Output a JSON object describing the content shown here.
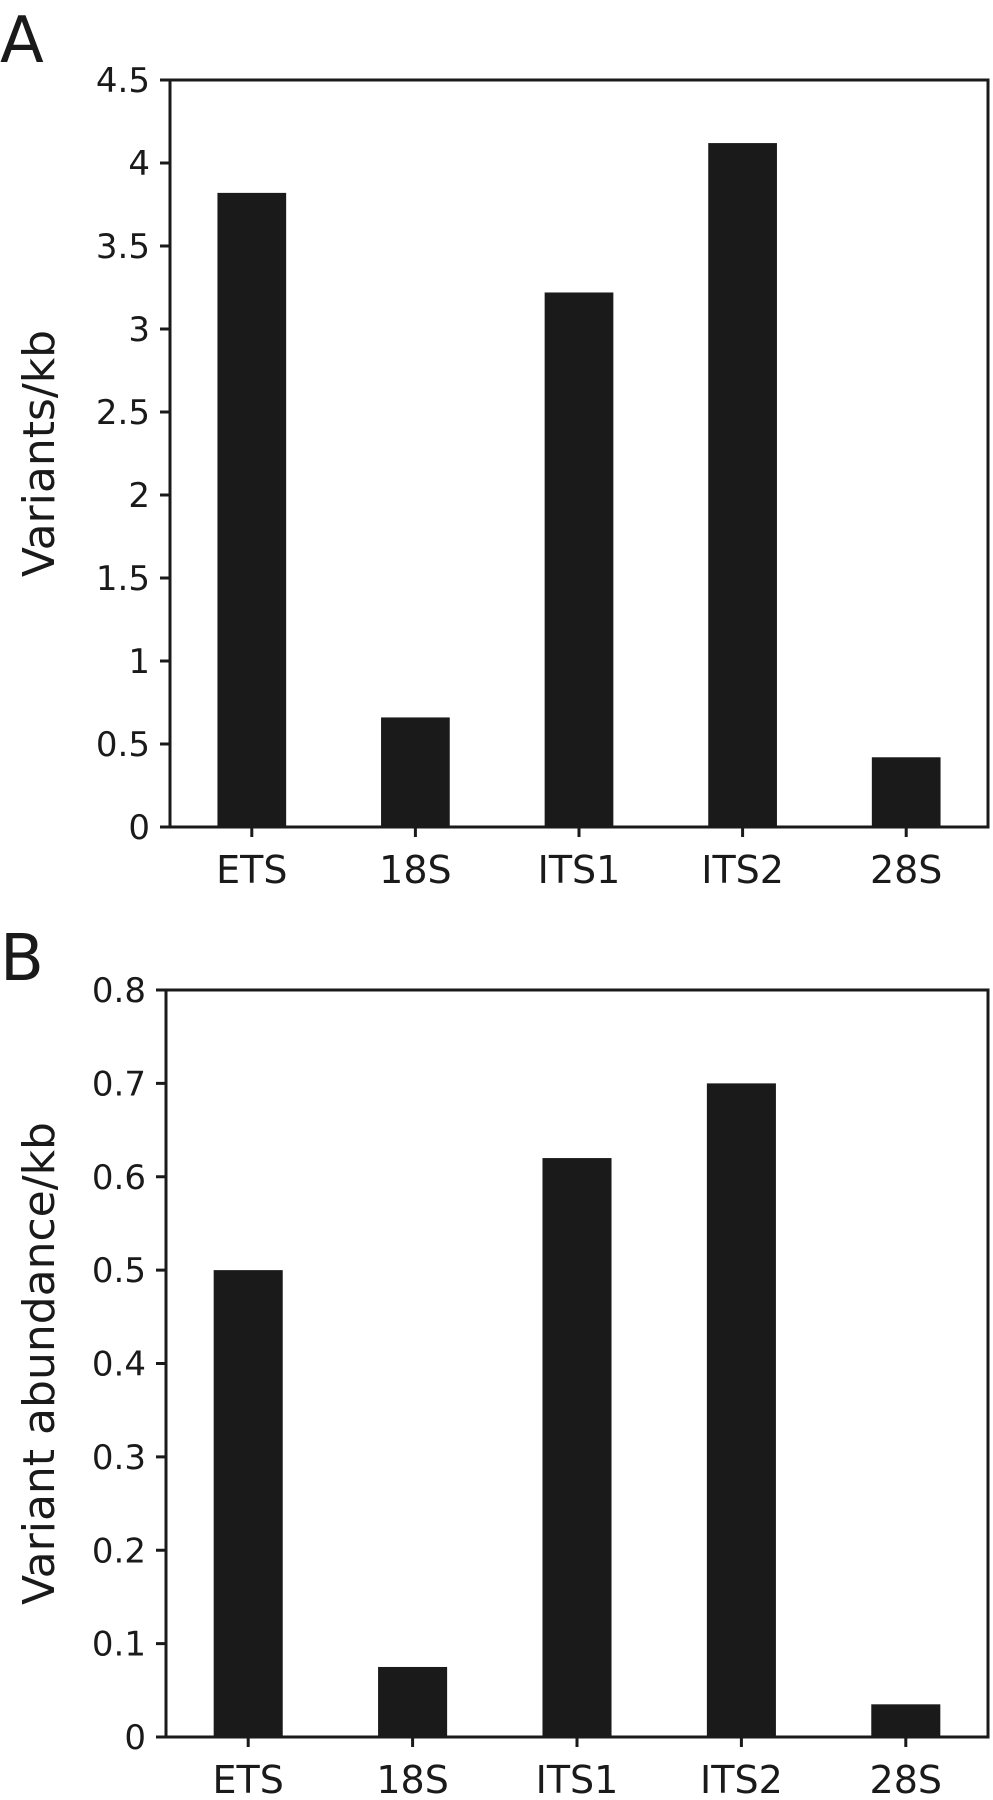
{
  "panels": [
    {
      "label": "A"
    },
    {
      "label": "B"
    }
  ],
  "colors": {
    "bar": "#1a1a1a",
    "axis": "#1a1a1a",
    "background": "#ffffff"
  },
  "chart_data": [
    {
      "type": "bar",
      "categories": [
        "ETS",
        "18S",
        "ITS1",
        "ITS2",
        "28S"
      ],
      "values": [
        3.82,
        0.66,
        3.22,
        4.12,
        0.42
      ],
      "title": "",
      "xlabel": "",
      "ylabel": "Variants/kb",
      "ylim": [
        0,
        4.5
      ],
      "yticks": [
        0,
        0.5,
        1,
        1.5,
        2,
        2.5,
        3,
        3.5,
        4,
        4.5
      ],
      "yticklabels": [
        "0",
        "0.5",
        "1",
        "1.5",
        "2",
        "2.5",
        "3",
        "3.5",
        "4",
        "4.5"
      ],
      "grid": false,
      "legend": "none"
    },
    {
      "type": "bar",
      "categories": [
        "ETS",
        "18S",
        "ITS1",
        "ITS2",
        "28S"
      ],
      "values": [
        0.5,
        0.075,
        0.62,
        0.7,
        0.035
      ],
      "title": "",
      "xlabel": "",
      "ylabel": "Variant abundance/kb",
      "ylim": [
        0,
        0.8
      ],
      "yticks": [
        0,
        0.1,
        0.2,
        0.3,
        0.4,
        0.5,
        0.6,
        0.7,
        0.8
      ],
      "yticklabels": [
        "0",
        "0.1",
        "0.2",
        "0.3",
        "0.4",
        "0.5",
        "0.6",
        "0.7",
        "0.8"
      ],
      "grid": false,
      "legend": "none"
    }
  ]
}
